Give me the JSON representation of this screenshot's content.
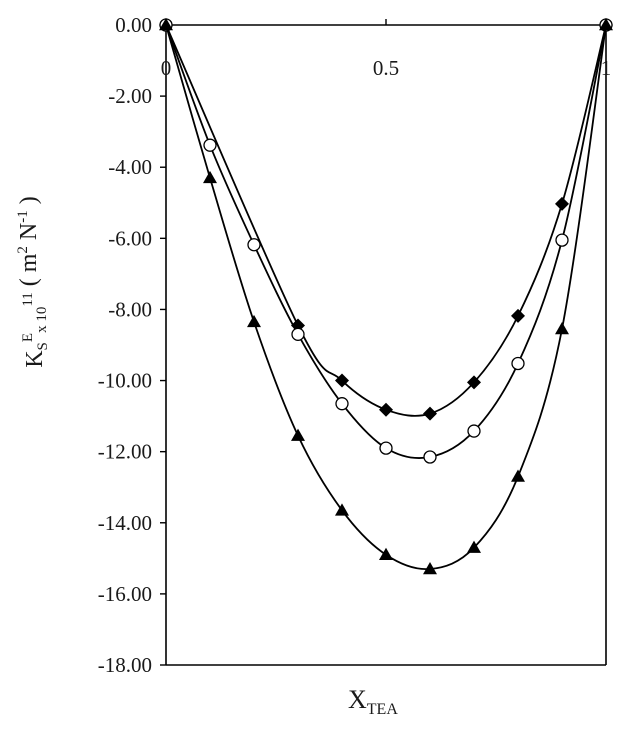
{
  "chart_data": {
    "type": "scatter",
    "title": "",
    "xlabel": {
      "main": "X",
      "sub": "TEA"
    },
    "ylabel": {
      "k": "K",
      "k_sub": "S",
      "e_sup": "E",
      "x10": "x 10",
      "exp": "11",
      "unit_open": " ( m",
      "unit_sup2": "2",
      "unit_n": " N",
      "unit_supm1": "-1",
      "unit_close": " )"
    },
    "xlim": [
      0,
      1
    ],
    "ylim": [
      -18,
      0
    ],
    "x_ticks": [
      "0",
      "0.5",
      "1"
    ],
    "y_ticks": [
      "0.00",
      "-2.00",
      "-4.00",
      "-6.00",
      "-8.00",
      "-10.00",
      "-12.00",
      "-14.00",
      "-16.00",
      "-18.00"
    ],
    "grid": false,
    "legend": "none",
    "series": [
      {
        "name": "diamond-series",
        "marker": "diamond",
        "x": [
          0,
          0.3,
          0.4,
          0.5,
          0.6,
          0.7,
          0.8,
          0.9,
          1.0
        ],
        "values": [
          0,
          -8.45,
          -10.0,
          -10.82,
          -10.93,
          -10.05,
          -8.18,
          -5.03,
          0
        ]
      },
      {
        "name": "circle-series",
        "marker": "circle",
        "x": [
          0,
          0.1,
          0.2,
          0.3,
          0.4,
          0.5,
          0.6,
          0.7,
          0.8,
          0.9,
          1.0
        ],
        "values": [
          0,
          -3.38,
          -6.18,
          -8.7,
          -10.65,
          -11.9,
          -12.15,
          -11.42,
          -9.52,
          -6.05,
          0
        ]
      },
      {
        "name": "triangle-series",
        "marker": "triangle",
        "x": [
          0,
          0.1,
          0.2,
          0.3,
          0.4,
          0.5,
          0.6,
          0.7,
          0.8,
          0.9,
          1.0
        ],
        "values": [
          0,
          -4.3,
          -8.35,
          -11.55,
          -13.65,
          -14.9,
          -15.3,
          -14.7,
          -12.7,
          -8.55,
          0
        ]
      }
    ]
  }
}
